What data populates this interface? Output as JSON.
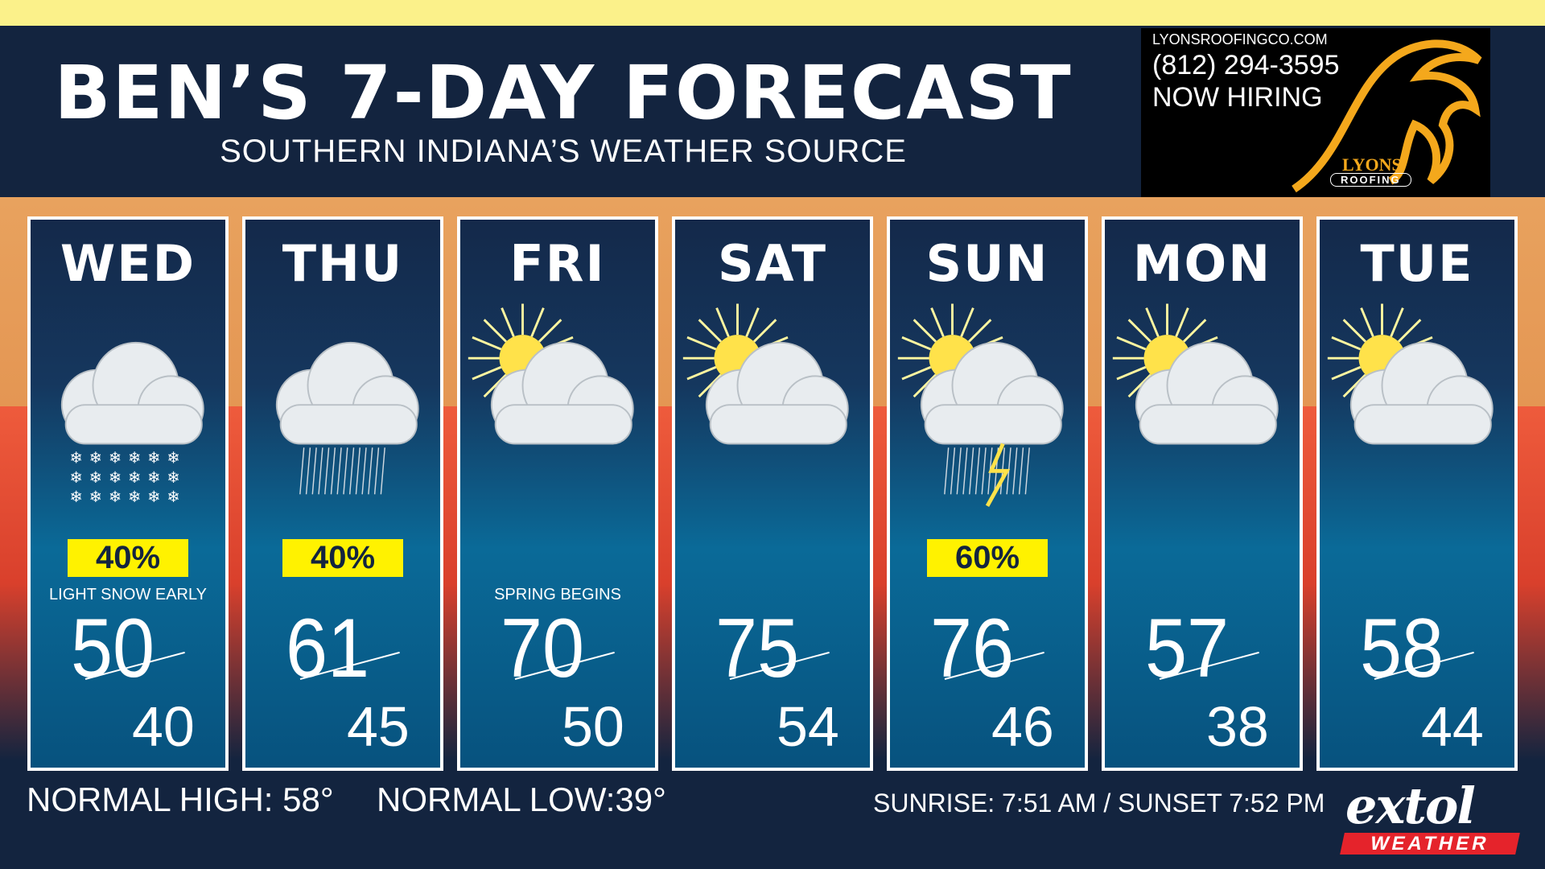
{
  "header": {
    "title": "BEN’S 7-DAY FORECAST",
    "subtitle": "SOUTHERN INDIANA’S WEATHER SOURCE"
  },
  "ad": {
    "url": "LYONSROOFINGCO.COM",
    "phone": "(812) 294-3595",
    "line": "NOW HIRING",
    "brand": "LYONS",
    "brand_sub": "ROOFING",
    "color": "#f4a81c"
  },
  "days": [
    {
      "day": "WED",
      "icon": "cloud-snow-icon",
      "precip": "40%",
      "note": "LIGHT SNOW EARLY",
      "high": "50",
      "low": "40"
    },
    {
      "day": "THU",
      "icon": "cloud-rain-icon",
      "precip": "40%",
      "note": "",
      "high": "61",
      "low": "45"
    },
    {
      "day": "FRI",
      "icon": "partly-sunny-icon",
      "precip": "",
      "note": "SPRING BEGINS",
      "high": "70",
      "low": "50"
    },
    {
      "day": "SAT",
      "icon": "partly-sunny-icon",
      "precip": "",
      "note": "",
      "high": "75",
      "low": "54"
    },
    {
      "day": "SUN",
      "icon": "thunderstorm-icon",
      "precip": "60%",
      "note": "",
      "high": "76",
      "low": "46"
    },
    {
      "day": "MON",
      "icon": "partly-sunny-icon",
      "precip": "",
      "note": "",
      "high": "57",
      "low": "38"
    },
    {
      "day": "TUE",
      "icon": "partly-sunny-icon",
      "precip": "",
      "note": "",
      "high": "58",
      "low": "44"
    }
  ],
  "footer": {
    "normal_high": "NORMAL HIGH: 58°",
    "normal_low": "NORMAL LOW:39°",
    "sun": "SUNRISE: 7:51 AM / SUNSET 7:52 PM"
  },
  "logo": {
    "word": "extol",
    "sub": "WEATHER"
  },
  "colors": {
    "navy": "#13243f",
    "badge": "#fff200",
    "accent_red": "#e5232b"
  }
}
